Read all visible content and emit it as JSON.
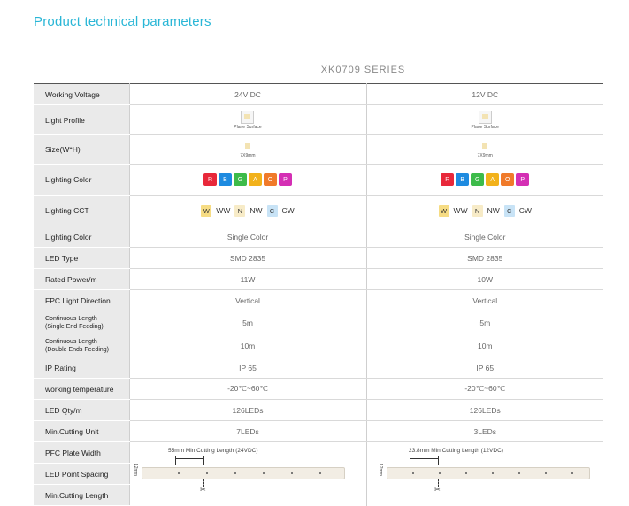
{
  "title": "Product technical parameters",
  "series": "XK0709 SERIES",
  "rows": {
    "voltage": {
      "label": "Working Voltage",
      "v1": "24V DC",
      "v2": "12V DC"
    },
    "profile": {
      "label": "Light Profile",
      "cap": "Plane Surface"
    },
    "size": {
      "label": "Size(W*H)",
      "cap": "7X9mm"
    },
    "color1": {
      "label": "Lighting Color",
      "chips": [
        "R",
        "B",
        "G",
        "A",
        "O",
        "P"
      ]
    },
    "cct": {
      "label": "Lighting CCT",
      "w": "W",
      "ww": "WW",
      "n": "N",
      "nw": "NW",
      "c": "C",
      "cw": "CW"
    },
    "color2": {
      "label": "Lighting Color",
      "v1": "Single Color",
      "v2": "Single Color"
    },
    "ledtype": {
      "label": "LED Type",
      "v1": "SMD 2835",
      "v2": "SMD 2835"
    },
    "power": {
      "label": "Rated Power/m",
      "v1": "11W",
      "v2": "10W"
    },
    "fpc": {
      "label": "FPC Light Direction",
      "v1": "Vertical",
      "v2": "Vertical"
    },
    "cls": {
      "label1": "Continuous Length",
      "label2": "(Single End Feeding)",
      "v1": "5m",
      "v2": "5m"
    },
    "cld": {
      "label1": "Continuous Length",
      "label2": "(Double Ends Feeding)",
      "v1": "10m",
      "v2": "10m"
    },
    "ip": {
      "label": "IP Rating",
      "v1": "IP 65",
      "v2": "IP 65"
    },
    "temp": {
      "label": "working temperature",
      "v1": "-20℃~60℃",
      "v2": "-20℃~60℃"
    },
    "qty": {
      "label": "LED Qty/m",
      "v1": "126LEDs",
      "v2": "126LEDs"
    },
    "cut": {
      "label": "Min.Cutting Unit",
      "v1": "7LEDs",
      "v2": "3LEDs"
    },
    "pfc": {
      "label": "PFC Plate Width"
    },
    "spacing": {
      "label": "LED Point Spacing"
    },
    "mincut": {
      "label": "Min.Cutting Length"
    }
  },
  "strips": {
    "left": "55mm Min.Cutting Length (24VDC)",
    "right": "23.8mm Min.Cutting Length (12VDC)",
    "height": "12mm"
  },
  "chip_colors": {
    "R": "#e8283a",
    "B": "#1e8be0",
    "G": "#3dbb4a",
    "A": "#f2b21b",
    "O": "#f07a2a",
    "P": "#d42fb4"
  },
  "cct_colors": {
    "W": "#f6dc84",
    "N": "#f7ebc7",
    "C": "#c8e3f6"
  }
}
